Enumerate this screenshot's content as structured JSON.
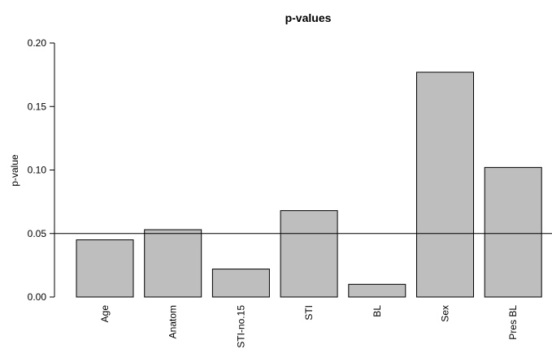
{
  "chart_data": {
    "type": "bar",
    "title": "p-values",
    "xlabel": "",
    "ylabel": "p-value",
    "categories": [
      "Age",
      "Anatom",
      "STI-no.15",
      "STI",
      "BL",
      "Sex",
      "Pres BL"
    ],
    "values": [
      0.045,
      0.053,
      0.022,
      0.068,
      0.01,
      0.177,
      0.102
    ],
    "ylim": [
      0,
      0.2
    ],
    "yticks": [
      0.0,
      0.05,
      0.1,
      0.15,
      0.2
    ],
    "ytick_labels": [
      "0.00",
      "0.05",
      "0.10",
      "0.15",
      "0.20"
    ],
    "reference_line": 0.05,
    "grid": false,
    "bar_color": "#bebebe",
    "bar_border_color": "#000000"
  }
}
